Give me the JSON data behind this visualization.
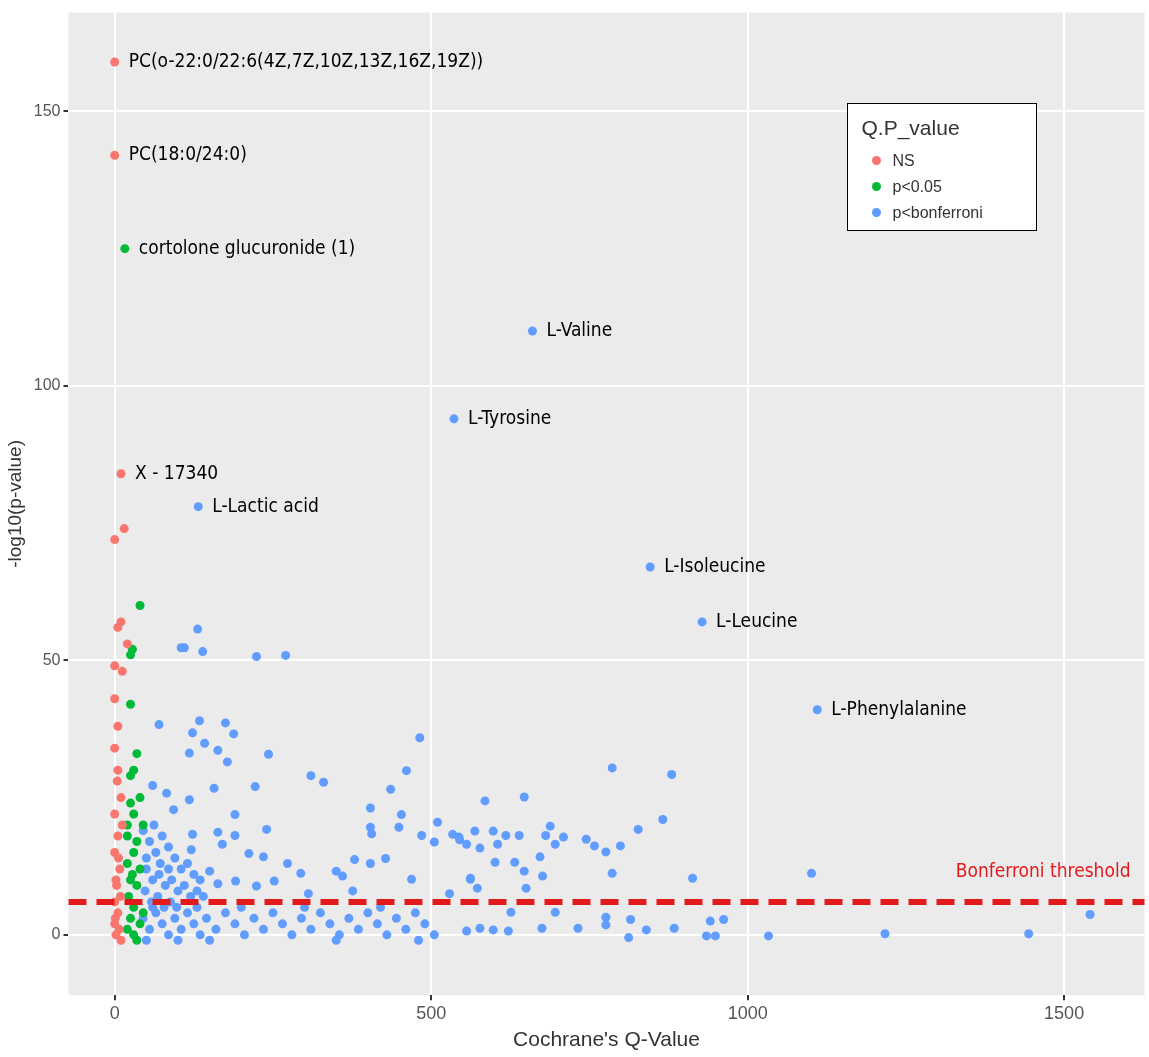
{
  "chart_data": {
    "type": "scatter",
    "xlabel": "Cochrane's Q-Value",
    "ylabel": "-log10(p-value)",
    "legend_title": "Q.P_value",
    "legend": "top right",
    "grid": true,
    "marker": "circle",
    "xlim": [
      -73,
      1627
    ],
    "ylim": [
      -11,
      168
    ],
    "xticks": [
      0,
      500,
      1000,
      1500
    ],
    "yticks": [
      0,
      50,
      100,
      150
    ],
    "series": [
      {
        "name": "NS",
        "color": "#f8766d",
        "x": [
          0,
          0,
          10,
          0,
          15,
          5,
          10,
          0,
          12,
          0,
          20,
          5,
          5,
          10,
          0,
          5,
          0,
          8,
          3,
          0,
          5,
          0,
          7,
          2,
          10,
          4,
          0,
          12,
          6,
          2,
          9,
          1
        ],
        "values": [
          159,
          142,
          84,
          72,
          74,
          56,
          57,
          49,
          48,
          43,
          53,
          38,
          30,
          25,
          22,
          18,
          15,
          12,
          9,
          6,
          4,
          2,
          1,
          0,
          -1,
          28,
          34,
          20,
          14,
          10,
          7,
          3
        ]
      },
      {
        "name": "p<0.05",
        "color": "#00ba38",
        "x": [
          16,
          40,
          28,
          25,
          25,
          35,
          30,
          25,
          40,
          25,
          30,
          45,
          20,
          35,
          30,
          20,
          40,
          25,
          35,
          22,
          30,
          25,
          40,
          20,
          30,
          35,
          45,
          20,
          28
        ],
        "values": [
          125,
          60,
          52,
          51,
          42,
          33,
          30,
          29,
          25,
          24,
          22,
          20,
          18,
          17,
          15,
          13,
          12,
          10,
          9,
          7,
          5,
          3,
          2,
          1,
          0,
          -1,
          4,
          20,
          11
        ]
      },
      {
        "name": "p<bonferroni",
        "color": "#619cff",
        "x": [
          660,
          536,
          132,
          846,
          928,
          1110,
          131,
          105,
          110,
          139,
          224,
          270,
          70,
          134,
          175,
          123,
          188,
          142,
          163,
          118,
          243,
          178,
          482,
          461,
          310,
          330,
          436,
          60,
          157,
          222,
          82,
          118,
          93,
          190,
          240,
          163,
          190,
          123,
          170,
          212,
          235,
          121,
          273,
          294,
          379,
          404,
          428,
          350,
          360,
          404,
          453,
          404,
          406,
          449,
          510,
          485,
          505,
          534,
          545,
          469,
          562,
          150,
          163,
          191,
          224,
          252,
          306,
          376,
          529,
          786,
          880,
          585,
          647,
          866,
          827,
          544,
          569,
          598,
          618,
          639,
          556,
          577,
          605,
          688,
          681,
          709,
          696,
          745,
          758,
          776,
          799,
          672,
          601,
          632,
          647,
          786,
          676,
          913,
          562,
          1101,
          650,
          573,
          626,
          696,
          776,
          815,
          941,
          962,
          577,
          556,
          598,
          622,
          675,
          732,
          776,
          812,
          840,
          884,
          935,
          949,
          1033,
          1217,
          1444,
          1541,
          45,
          55,
          65,
          75,
          85,
          95,
          105,
          115,
          125,
          135,
          50,
          60,
          70,
          80,
          90,
          100,
          110,
          120,
          130,
          140,
          48,
          58,
          68,
          78,
          88,
          98,
          50,
          62,
          72,
          85,
          45,
          55,
          65,
          75,
          85,
          95,
          105,
          115,
          125,
          135,
          145,
          160,
          175,
          190,
          205,
          220,
          235,
          250,
          265,
          280,
          295,
          310,
          325,
          340,
          355,
          370,
          385,
          400,
          415,
          430,
          445,
          460,
          475,
          490,
          505,
          50,
          100,
          150,
          200,
          300,
          350,
          420,
          480,
          60,
          130
        ],
        "values": [
          110,
          94,
          78,
          67,
          57,
          41,
          55.7,
          52.3,
          52.3,
          51.6,
          50.7,
          50.9,
          38.3,
          39,
          38.6,
          36.8,
          36.6,
          34.9,
          33.6,
          33.1,
          32.9,
          31.5,
          35.9,
          29.9,
          29,
          27.8,
          26.5,
          27.2,
          26.7,
          27,
          25.8,
          24.6,
          22.8,
          21.9,
          19.2,
          18.7,
          18.1,
          18.3,
          16.5,
          14.8,
          14.2,
          15.5,
          13,
          11.2,
          13.7,
          13,
          13.9,
          11.6,
          10.7,
          23.1,
          21.9,
          19.6,
          18.4,
          19.6,
          20.5,
          18.1,
          16.9,
          18.3,
          17.3,
          10.1,
          10.3,
          11.6,
          9.3,
          9.8,
          8.9,
          9.8,
          7.5,
          8,
          7.5,
          30.4,
          29.2,
          24.4,
          25.1,
          21,
          19.2,
          17.8,
          18.9,
          18.9,
          18.1,
          18.1,
          16.5,
          15.8,
          16.5,
          19.8,
          18.1,
          17.8,
          16.5,
          17.4,
          16.2,
          15.1,
          16.2,
          14.2,
          13.2,
          13.2,
          11.6,
          11.2,
          10.7,
          10.3,
          10.1,
          11.2,
          8.5,
          8.5,
          4.1,
          4.1,
          3.2,
          2.8,
          2.5,
          2.8,
          1.2,
          0.7,
          0.9,
          0.7,
          1.2,
          1.2,
          1.8,
          -0.5,
          0.9,
          1.2,
          -0.2,
          -0.2,
          -0.2,
          0.2,
          0.2,
          3.7,
          19,
          17,
          15,
          18,
          16,
          14,
          12,
          13,
          11,
          10,
          12,
          10,
          11,
          9,
          10,
          8,
          9,
          7,
          8,
          7,
          8,
          6,
          7,
          5,
          6,
          5,
          14,
          20,
          13,
          12,
          3,
          1,
          4,
          2,
          0,
          3,
          1,
          4,
          2,
          0,
          3,
          1,
          4,
          2,
          0,
          3,
          1,
          4,
          2,
          0,
          3,
          1,
          4,
          2,
          0,
          3,
          1,
          4,
          2,
          0,
          3,
          1,
          4,
          2,
          0,
          -1,
          -1,
          -1,
          5,
          5,
          -1,
          5,
          -1,
          5,
          5
        ]
      }
    ],
    "ref_lines": [
      {
        "axis": "y",
        "value": 6,
        "label": "Bonferroni threshold",
        "color": "#e31a1c",
        "line_style": "dashed"
      }
    ],
    "annotations": [
      {
        "text": "PC(o-22:0/22:6(4Z,7Z,10Z,13Z,16Z,19Z))",
        "x": 0,
        "y": 159
      },
      {
        "text": "PC(18:0/24:0)",
        "x": 0,
        "y": 142
      },
      {
        "text": "cortolone glucuronide (1)",
        "x": 16,
        "y": 125
      },
      {
        "text": "L-Valine",
        "x": 660,
        "y": 110
      },
      {
        "text": "L-Tyrosine",
        "x": 536,
        "y": 94
      },
      {
        "text": "X - 17340",
        "x": 10,
        "y": 84
      },
      {
        "text": "L-Lactic acid",
        "x": 132,
        "y": 78
      },
      {
        "text": "L-Isoleucine",
        "x": 846,
        "y": 67
      },
      {
        "text": "L-Leucine",
        "x": 928,
        "y": 57
      },
      {
        "text": "L-Phenylalanine",
        "x": 1110,
        "y": 41
      }
    ]
  }
}
